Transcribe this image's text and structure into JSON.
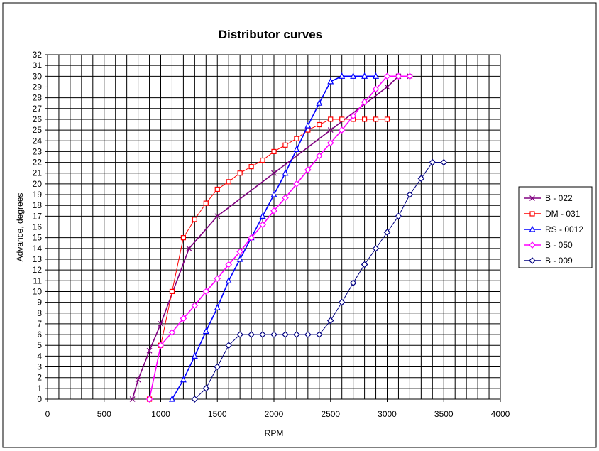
{
  "chart_data": {
    "type": "line",
    "title": "Distributor curves",
    "xlabel": "RPM",
    "ylabel": "Advance, degrees",
    "xlim": [
      0,
      4000
    ],
    "ylim": [
      0,
      32
    ],
    "xticks": [
      0,
      500,
      1000,
      1500,
      2000,
      2500,
      3000,
      3500,
      4000
    ],
    "yticks": [
      0,
      1,
      2,
      3,
      4,
      5,
      6,
      7,
      8,
      9,
      10,
      11,
      12,
      13,
      14,
      15,
      16,
      17,
      18,
      19,
      20,
      21,
      22,
      23,
      24,
      25,
      26,
      27,
      28,
      29,
      30,
      31,
      32
    ],
    "grid": true,
    "legend_position": "right",
    "series": [
      {
        "name": "B - 022",
        "color": "#800080",
        "marker": "x",
        "points": [
          [
            750,
            0
          ],
          [
            800,
            1.8
          ],
          [
            900,
            4.5
          ],
          [
            1000,
            7
          ],
          [
            1250,
            14
          ],
          [
            1500,
            17
          ],
          [
            2000,
            21
          ],
          [
            2500,
            25
          ],
          [
            3000,
            29
          ],
          [
            3100,
            30
          ],
          [
            3200,
            30
          ]
        ]
      },
      {
        "name": "DM - 031",
        "color": "#FF0000",
        "marker": "square",
        "points": [
          [
            900,
            0
          ],
          [
            1000,
            5
          ],
          [
            1100,
            10
          ],
          [
            1200,
            15
          ],
          [
            1300,
            16.7
          ],
          [
            1400,
            18.2
          ],
          [
            1500,
            19.5
          ],
          [
            1600,
            20.2
          ],
          [
            1700,
            21
          ],
          [
            1800,
            21.6
          ],
          [
            1900,
            22.2
          ],
          [
            2000,
            23
          ],
          [
            2100,
            23.6
          ],
          [
            2200,
            24.2
          ],
          [
            2300,
            25
          ],
          [
            2400,
            25.5
          ],
          [
            2500,
            26
          ],
          [
            2600,
            26
          ],
          [
            2700,
            26
          ],
          [
            2800,
            26
          ],
          [
            2900,
            26
          ],
          [
            3000,
            26
          ]
        ]
      },
      {
        "name": "RS - 0012",
        "color": "#0000FF",
        "marker": "triangle",
        "points": [
          [
            1100,
            0
          ],
          [
            1200,
            1.8
          ],
          [
            1300,
            4
          ],
          [
            1400,
            6.3
          ],
          [
            1500,
            8.5
          ],
          [
            1600,
            11
          ],
          [
            1700,
            13
          ],
          [
            1800,
            15
          ],
          [
            1900,
            17
          ],
          [
            2000,
            19
          ],
          [
            2100,
            21
          ],
          [
            2200,
            23.2
          ],
          [
            2300,
            25.4
          ],
          [
            2400,
            27.5
          ],
          [
            2500,
            29.5
          ],
          [
            2600,
            30
          ],
          [
            2700,
            30
          ],
          [
            2800,
            30
          ],
          [
            2900,
            30
          ]
        ]
      },
      {
        "name": "B - 050",
        "color": "#FF00FF",
        "marker": "diamond",
        "points": [
          [
            900,
            0
          ],
          [
            1000,
            5
          ],
          [
            1100,
            6.2
          ],
          [
            1200,
            7.5
          ],
          [
            1300,
            8.7
          ],
          [
            1400,
            10
          ],
          [
            1500,
            11.2
          ],
          [
            1600,
            12.5
          ],
          [
            1700,
            13.7
          ],
          [
            1800,
            15
          ],
          [
            1900,
            16.2
          ],
          [
            2000,
            17.5
          ],
          [
            2100,
            18.7
          ],
          [
            2200,
            20
          ],
          [
            2300,
            21.3
          ],
          [
            2400,
            22.6
          ],
          [
            2500,
            23.8
          ],
          [
            2600,
            25
          ],
          [
            2700,
            26.3
          ],
          [
            2800,
            27.6
          ],
          [
            2900,
            28.8
          ],
          [
            3000,
            30
          ],
          [
            3100,
            30
          ],
          [
            3200,
            30
          ]
        ]
      },
      {
        "name": "B - 009",
        "color": "#000080",
        "marker": "diamond",
        "points": [
          [
            1300,
            0
          ],
          [
            1400,
            1
          ],
          [
            1500,
            3
          ],
          [
            1600,
            5
          ],
          [
            1700,
            6
          ],
          [
            1800,
            6
          ],
          [
            1900,
            6
          ],
          [
            2000,
            6
          ],
          [
            2100,
            6
          ],
          [
            2200,
            6
          ],
          [
            2300,
            6
          ],
          [
            2400,
            6
          ],
          [
            2500,
            7.3
          ],
          [
            2600,
            9
          ],
          [
            2700,
            10.8
          ],
          [
            2800,
            12.5
          ],
          [
            2900,
            14
          ],
          [
            3000,
            15.5
          ],
          [
            3100,
            17
          ],
          [
            3200,
            19
          ],
          [
            3300,
            20.5
          ],
          [
            3400,
            22
          ],
          [
            3500,
            22
          ]
        ]
      }
    ]
  }
}
